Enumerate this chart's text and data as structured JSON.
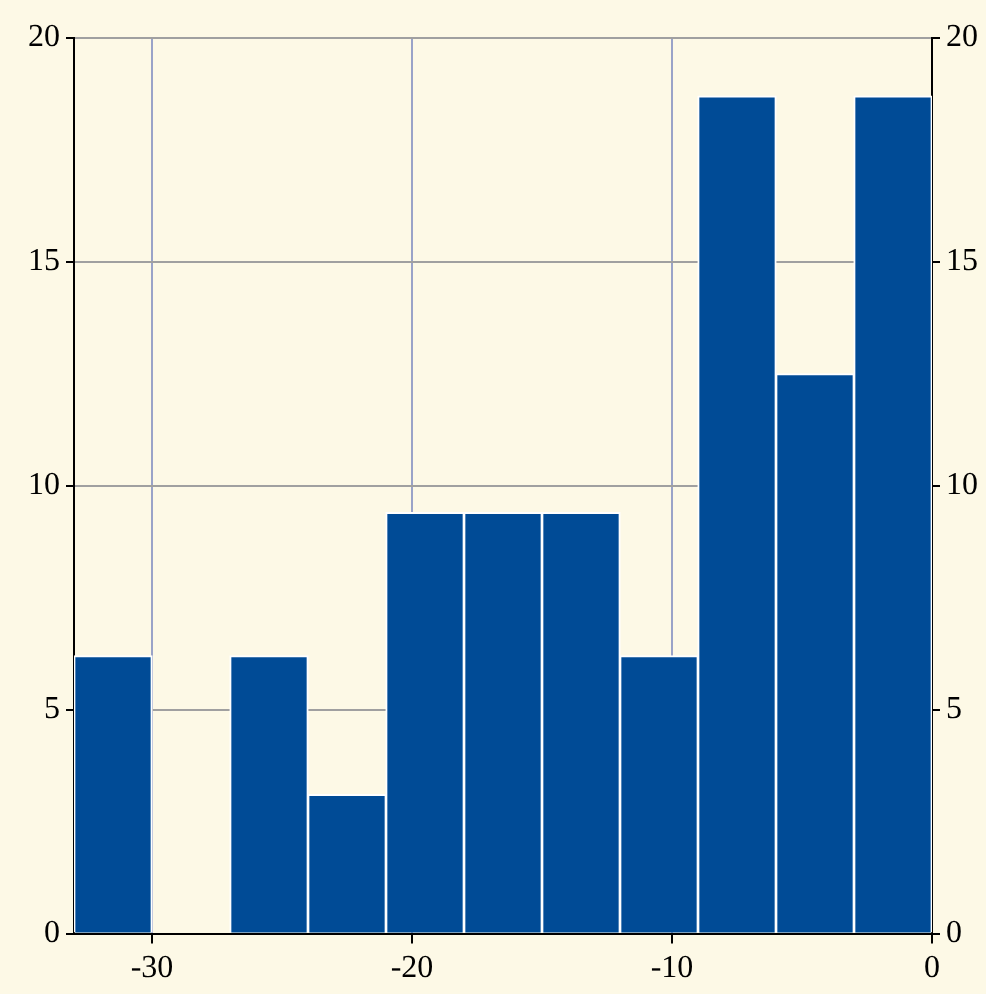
{
  "chart_data": {
    "type": "histogram",
    "bins": [
      -33,
      -30,
      -27,
      -24,
      -21,
      -18,
      -15,
      -12,
      -9,
      -6,
      -3,
      0
    ],
    "values": [
      6.2,
      0,
      6.2,
      3.1,
      9.4,
      9.4,
      9.4,
      6.2,
      18.7,
      12.5,
      18.7
    ],
    "color": "#004b96",
    "xlim": [
      -33,
      0
    ],
    "xticks": [
      -30,
      -20,
      -10,
      0
    ],
    "ylim": [
      0,
      20
    ],
    "yticks": [
      0,
      5,
      10,
      15,
      20
    ],
    "y2lim": [
      0,
      20
    ],
    "y2ticks": [
      0,
      5,
      10,
      15,
      20
    ],
    "grid": true,
    "legend": false
  }
}
